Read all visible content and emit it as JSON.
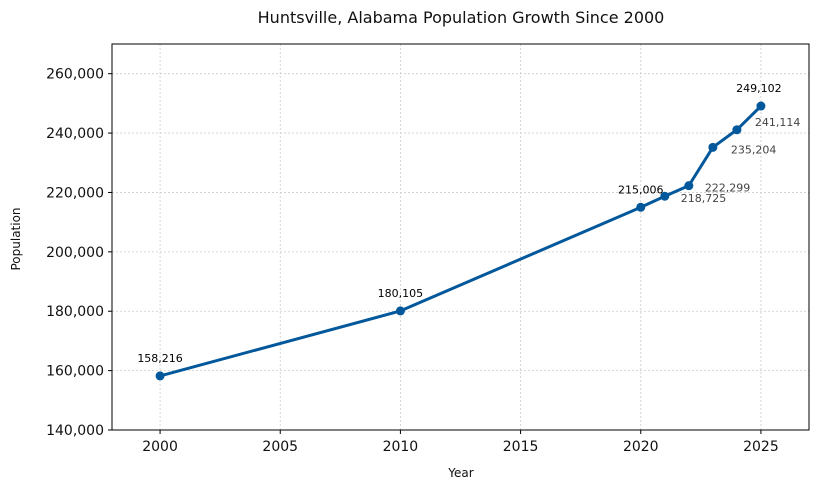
{
  "chart_data": {
    "type": "line",
    "title": "Huntsville, Alabama Population Growth Since 2000",
    "xlabel": "Year",
    "ylabel": "Population",
    "xlim": [
      1998,
      2027
    ],
    "ylim": [
      140000,
      270000
    ],
    "x_ticks": [
      2000,
      2005,
      2010,
      2015,
      2020,
      2025
    ],
    "y_ticks": [
      140000,
      160000,
      180000,
      200000,
      220000,
      240000,
      260000
    ],
    "y_tick_labels": [
      "140,000",
      "160,000",
      "180,000",
      "200,000",
      "220,000",
      "240,000",
      "260,000"
    ],
    "grid": true,
    "series": [
      {
        "color": "#02589b",
        "x": [
          2000,
          2010,
          2020,
          2021,
          2022,
          2023,
          2024,
          2025
        ],
        "values": [
          158216,
          180105,
          215006,
          218725,
          222299,
          235204,
          241114,
          249102
        ],
        "labels": [
          "158,216",
          "180,105",
          "215,006",
          "218,725",
          "222,299",
          "235,204",
          "241,114",
          "249,102"
        ]
      }
    ],
    "label_colors": {
      "primary": "#000000",
      "secondary": "#444444"
    }
  }
}
